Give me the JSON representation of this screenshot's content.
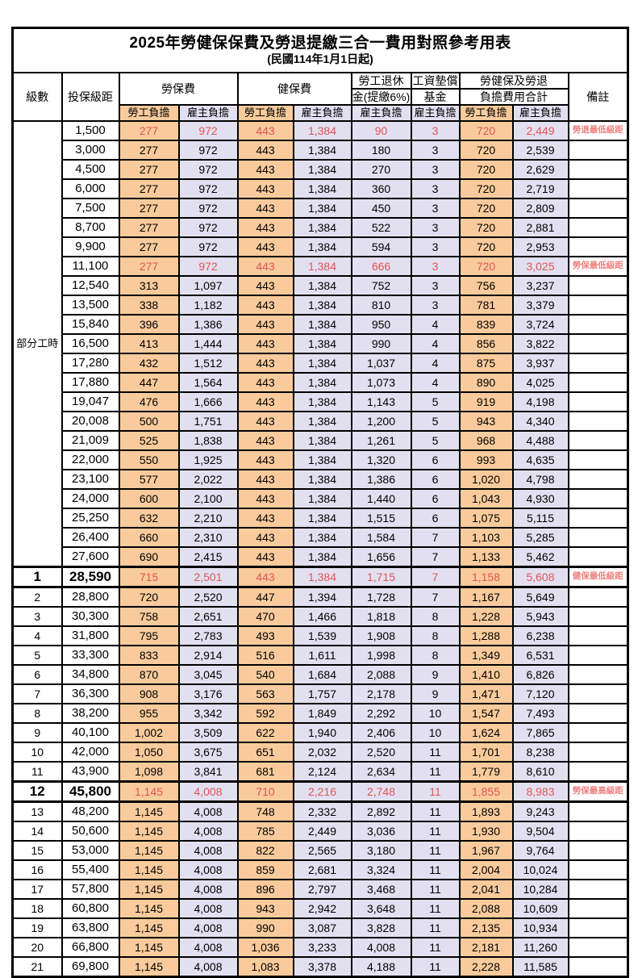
{
  "title": "2025年勞健保保費及勞退提繳三合一費用對照參考用表",
  "subtitle": "(民國114年1月1日起)",
  "colors": {
    "employee_bg": "#F9CB9C",
    "employer_bg": "#E2E0F0",
    "highlight_red": "#E05555",
    "note_red": "#F08080"
  },
  "header": {
    "level": "級數",
    "bracket": "投保級距",
    "labor_insurance": "勞保費",
    "health_insurance": "健保費",
    "pension_line1": "勞工退休",
    "pension_line2": "金(提繳6%)",
    "wage_fund_line1": "工資墊償",
    "wage_fund_line2": "基金",
    "total_line1": "勞健保及勞退",
    "total_line2": "負擔費用合計",
    "note": "備註",
    "employee_share": "勞工負擔",
    "employer_share": "雇主負擔"
  },
  "part_time": {
    "label": "部分工時",
    "span": 23
  },
  "rows": [
    {
      "level": "",
      "bracket": "1,500",
      "v": [
        "277",
        "972",
        "443",
        "1,384",
        "90",
        "3",
        "720",
        "2,449"
      ],
      "note": "勞退最低級距",
      "red": true,
      "em": false
    },
    {
      "level": "",
      "bracket": "3,000",
      "v": [
        "277",
        "972",
        "443",
        "1,384",
        "180",
        "3",
        "720",
        "2,539"
      ],
      "note": "",
      "red": false,
      "em": false
    },
    {
      "level": "",
      "bracket": "4,500",
      "v": [
        "277",
        "972",
        "443",
        "1,384",
        "270",
        "3",
        "720",
        "2,629"
      ],
      "note": "",
      "red": false,
      "em": false
    },
    {
      "level": "",
      "bracket": "6,000",
      "v": [
        "277",
        "972",
        "443",
        "1,384",
        "360",
        "3",
        "720",
        "2,719"
      ],
      "note": "",
      "red": false,
      "em": false
    },
    {
      "level": "",
      "bracket": "7,500",
      "v": [
        "277",
        "972",
        "443",
        "1,384",
        "450",
        "3",
        "720",
        "2,809"
      ],
      "note": "",
      "red": false,
      "em": false
    },
    {
      "level": "",
      "bracket": "8,700",
      "v": [
        "277",
        "972",
        "443",
        "1,384",
        "522",
        "3",
        "720",
        "2,881"
      ],
      "note": "",
      "red": false,
      "em": false
    },
    {
      "level": "",
      "bracket": "9,900",
      "v": [
        "277",
        "972",
        "443",
        "1,384",
        "594",
        "3",
        "720",
        "2,953"
      ],
      "note": "",
      "red": false,
      "em": false
    },
    {
      "level": "",
      "bracket": "11,100",
      "v": [
        "277",
        "972",
        "443",
        "1,384",
        "666",
        "3",
        "720",
        "3,025"
      ],
      "note": "勞保最低級距",
      "red": true,
      "em": false
    },
    {
      "level": "",
      "bracket": "12,540",
      "v": [
        "313",
        "1,097",
        "443",
        "1,384",
        "752",
        "3",
        "756",
        "3,237"
      ],
      "note": "",
      "red": false,
      "em": false
    },
    {
      "level": "",
      "bracket": "13,500",
      "v": [
        "338",
        "1,182",
        "443",
        "1,384",
        "810",
        "3",
        "781",
        "3,379"
      ],
      "note": "",
      "red": false,
      "em": false
    },
    {
      "level": "",
      "bracket": "15,840",
      "v": [
        "396",
        "1,386",
        "443",
        "1,384",
        "950",
        "4",
        "839",
        "3,724"
      ],
      "note": "",
      "red": false,
      "em": false
    },
    {
      "level": "",
      "bracket": "16,500",
      "v": [
        "413",
        "1,444",
        "443",
        "1,384",
        "990",
        "4",
        "856",
        "3,822"
      ],
      "note": "",
      "red": false,
      "em": false
    },
    {
      "level": "",
      "bracket": "17,280",
      "v": [
        "432",
        "1,512",
        "443",
        "1,384",
        "1,037",
        "4",
        "875",
        "3,937"
      ],
      "note": "",
      "red": false,
      "em": false
    },
    {
      "level": "",
      "bracket": "17,880",
      "v": [
        "447",
        "1,564",
        "443",
        "1,384",
        "1,073",
        "4",
        "890",
        "4,025"
      ],
      "note": "",
      "red": false,
      "em": false
    },
    {
      "level": "",
      "bracket": "19,047",
      "v": [
        "476",
        "1,666",
        "443",
        "1,384",
        "1,143",
        "5",
        "919",
        "4,198"
      ],
      "note": "",
      "red": false,
      "em": false
    },
    {
      "level": "",
      "bracket": "20,008",
      "v": [
        "500",
        "1,751",
        "443",
        "1,384",
        "1,200",
        "5",
        "943",
        "4,340"
      ],
      "note": "",
      "red": false,
      "em": false
    },
    {
      "level": "",
      "bracket": "21,009",
      "v": [
        "525",
        "1,838",
        "443",
        "1,384",
        "1,261",
        "5",
        "968",
        "4,488"
      ],
      "note": "",
      "red": false,
      "em": false
    },
    {
      "level": "",
      "bracket": "22,000",
      "v": [
        "550",
        "1,925",
        "443",
        "1,384",
        "1,320",
        "6",
        "993",
        "4,635"
      ],
      "note": "",
      "red": false,
      "em": false
    },
    {
      "level": "",
      "bracket": "23,100",
      "v": [
        "577",
        "2,022",
        "443",
        "1,384",
        "1,386",
        "6",
        "1,020",
        "4,798"
      ],
      "note": "",
      "red": false,
      "em": false
    },
    {
      "level": "",
      "bracket": "24,000",
      "v": [
        "600",
        "2,100",
        "443",
        "1,384",
        "1,440",
        "6",
        "1,043",
        "4,930"
      ],
      "note": "",
      "red": false,
      "em": false
    },
    {
      "level": "",
      "bracket": "25,250",
      "v": [
        "632",
        "2,210",
        "443",
        "1,384",
        "1,515",
        "6",
        "1,075",
        "5,115"
      ],
      "note": "",
      "red": false,
      "em": false
    },
    {
      "level": "",
      "bracket": "26,400",
      "v": [
        "660",
        "2,310",
        "443",
        "1,384",
        "1,584",
        "7",
        "1,103",
        "5,285"
      ],
      "note": "",
      "red": false,
      "em": false
    },
    {
      "level": "",
      "bracket": "27,600",
      "v": [
        "690",
        "2,415",
        "443",
        "1,384",
        "1,656",
        "7",
        "1,133",
        "5,462"
      ],
      "note": "",
      "red": false,
      "em": false
    },
    {
      "level": "1",
      "bracket": "28,590",
      "v": [
        "715",
        "2,501",
        "443",
        "1,384",
        "1,715",
        "7",
        "1,158",
        "5,608"
      ],
      "note": "健保最低級距",
      "red": true,
      "em": true
    },
    {
      "level": "2",
      "bracket": "28,800",
      "v": [
        "720",
        "2,520",
        "447",
        "1,394",
        "1,728",
        "7",
        "1,167",
        "5,649"
      ],
      "note": "",
      "red": false,
      "em": false
    },
    {
      "level": "3",
      "bracket": "30,300",
      "v": [
        "758",
        "2,651",
        "470",
        "1,466",
        "1,818",
        "8",
        "1,228",
        "5,943"
      ],
      "note": "",
      "red": false,
      "em": false
    },
    {
      "level": "4",
      "bracket": "31,800",
      "v": [
        "795",
        "2,783",
        "493",
        "1,539",
        "1,908",
        "8",
        "1,288",
        "6,238"
      ],
      "note": "",
      "red": false,
      "em": false
    },
    {
      "level": "5",
      "bracket": "33,300",
      "v": [
        "833",
        "2,914",
        "516",
        "1,611",
        "1,998",
        "8",
        "1,349",
        "6,531"
      ],
      "note": "",
      "red": false,
      "em": false
    },
    {
      "level": "6",
      "bracket": "34,800",
      "v": [
        "870",
        "3,045",
        "540",
        "1,684",
        "2,088",
        "9",
        "1,410",
        "6,826"
      ],
      "note": "",
      "red": false,
      "em": false
    },
    {
      "level": "7",
      "bracket": "36,300",
      "v": [
        "908",
        "3,176",
        "563",
        "1,757",
        "2,178",
        "9",
        "1,471",
        "7,120"
      ],
      "note": "",
      "red": false,
      "em": false
    },
    {
      "level": "8",
      "bracket": "38,200",
      "v": [
        "955",
        "3,342",
        "592",
        "1,849",
        "2,292",
        "10",
        "1,547",
        "7,493"
      ],
      "note": "",
      "red": false,
      "em": false
    },
    {
      "level": "9",
      "bracket": "40,100",
      "v": [
        "1,002",
        "3,509",
        "622",
        "1,940",
        "2,406",
        "10",
        "1,624",
        "7,865"
      ],
      "note": "",
      "red": false,
      "em": false
    },
    {
      "level": "10",
      "bracket": "42,000",
      "v": [
        "1,050",
        "3,675",
        "651",
        "2,032",
        "2,520",
        "11",
        "1,701",
        "8,238"
      ],
      "note": "",
      "red": false,
      "em": false
    },
    {
      "level": "11",
      "bracket": "43,900",
      "v": [
        "1,098",
        "3,841",
        "681",
        "2,124",
        "2,634",
        "11",
        "1,779",
        "8,610"
      ],
      "note": "",
      "red": false,
      "em": false
    },
    {
      "level": "12",
      "bracket": "45,800",
      "v": [
        "1,145",
        "4,008",
        "710",
        "2,216",
        "2,748",
        "11",
        "1,855",
        "8,983"
      ],
      "note": "勞保最高級距",
      "red": true,
      "em": true
    },
    {
      "level": "13",
      "bracket": "48,200",
      "v": [
        "1,145",
        "4,008",
        "748",
        "2,332",
        "2,892",
        "11",
        "1,893",
        "9,243"
      ],
      "note": "",
      "red": false,
      "em": false
    },
    {
      "level": "14",
      "bracket": "50,600",
      "v": [
        "1,145",
        "4,008",
        "785",
        "2,449",
        "3,036",
        "11",
        "1,930",
        "9,504"
      ],
      "note": "",
      "red": false,
      "em": false
    },
    {
      "level": "15",
      "bracket": "53,000",
      "v": [
        "1,145",
        "4,008",
        "822",
        "2,565",
        "3,180",
        "11",
        "1,967",
        "9,764"
      ],
      "note": "",
      "red": false,
      "em": false
    },
    {
      "level": "16",
      "bracket": "55,400",
      "v": [
        "1,145",
        "4,008",
        "859",
        "2,681",
        "3,324",
        "11",
        "2,004",
        "10,024"
      ],
      "note": "",
      "red": false,
      "em": false
    },
    {
      "level": "17",
      "bracket": "57,800",
      "v": [
        "1,145",
        "4,008",
        "896",
        "2,797",
        "3,468",
        "11",
        "2,041",
        "10,284"
      ],
      "note": "",
      "red": false,
      "em": false
    },
    {
      "level": "18",
      "bracket": "60,800",
      "v": [
        "1,145",
        "4,008",
        "943",
        "2,942",
        "3,648",
        "11",
        "2,088",
        "10,609"
      ],
      "note": "",
      "red": false,
      "em": false
    },
    {
      "level": "19",
      "bracket": "63,800",
      "v": [
        "1,145",
        "4,008",
        "990",
        "3,087",
        "3,828",
        "11",
        "2,135",
        "10,934"
      ],
      "note": "",
      "red": false,
      "em": false
    },
    {
      "level": "20",
      "bracket": "66,800",
      "v": [
        "1,145",
        "4,008",
        "1,036",
        "3,233",
        "4,008",
        "11",
        "2,181",
        "11,260"
      ],
      "note": "",
      "red": false,
      "em": false
    },
    {
      "level": "21",
      "bracket": "69,800",
      "v": [
        "1,145",
        "4,008",
        "1,083",
        "3,378",
        "4,188",
        "11",
        "2,228",
        "11,585"
      ],
      "note": "",
      "red": false,
      "em": false
    }
  ]
}
